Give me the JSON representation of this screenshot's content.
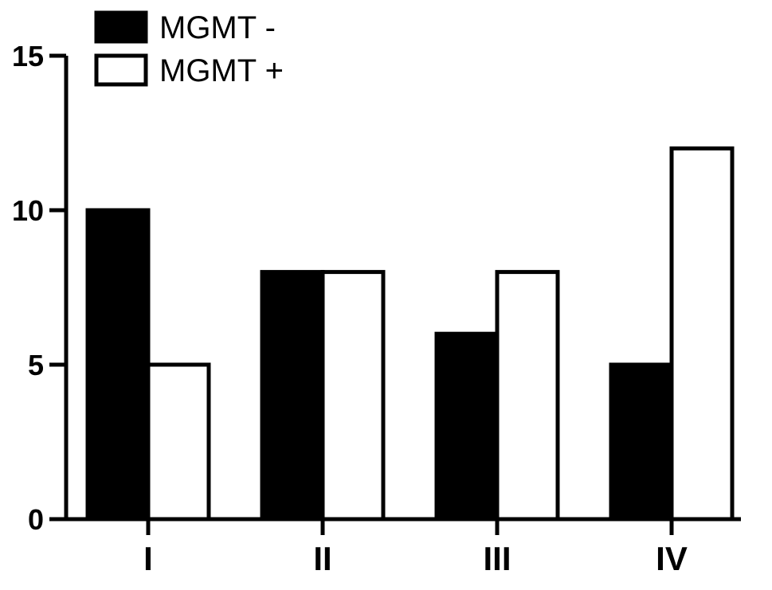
{
  "chart_data": {
    "type": "bar",
    "categories": [
      "I",
      "II",
      "III",
      "IV"
    ],
    "series": [
      {
        "name": "MGMT -",
        "values": [
          10,
          8,
          6,
          5
        ],
        "color": "#000000"
      },
      {
        "name": "MGMT +",
        "values": [
          5,
          8,
          8,
          12
        ],
        "color": "#ffffff"
      }
    ],
    "ylim": [
      0,
      15
    ],
    "yticks": [
      0,
      5,
      10,
      15
    ],
    "grid": false,
    "legend_position": "top-left"
  }
}
